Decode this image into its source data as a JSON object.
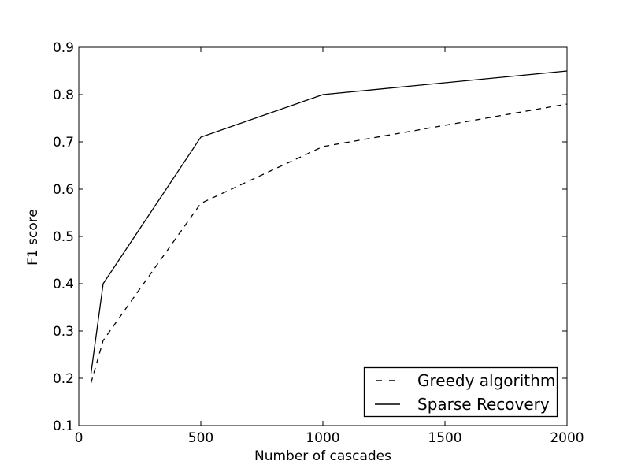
{
  "figure": {
    "background": "#ffffff",
    "frame_color": "#000000"
  },
  "chart_data": {
    "type": "line",
    "title": "",
    "xlabel": "Number of cascades",
    "ylabel": "F1 score",
    "xlim": [
      0,
      2000
    ],
    "ylim": [
      0.1,
      0.9
    ],
    "x_ticks": [
      0,
      500,
      1000,
      1500,
      2000
    ],
    "x_tick_labels": [
      "0",
      "500",
      "1000",
      "1500",
      "2000"
    ],
    "y_ticks": [
      0.1,
      0.2,
      0.3,
      0.4,
      0.5,
      0.6,
      0.7,
      0.8,
      0.9
    ],
    "y_tick_labels": [
      "0.1",
      "0.2",
      "0.3",
      "0.4",
      "0.5",
      "0.6",
      "0.7",
      "0.8",
      "0.9"
    ],
    "grid": false,
    "x": [
      50,
      100,
      500,
      1000,
      2000
    ],
    "series": [
      {
        "name": "Greedy algorithm",
        "line_style": "dashed",
        "color": "#000000",
        "values": [
          0.19,
          0.28,
          0.57,
          0.69,
          0.78
        ]
      },
      {
        "name": "Sparse Recovery",
        "line_style": "solid",
        "color": "#000000",
        "values": [
          0.21,
          0.4,
          0.71,
          0.8,
          0.85
        ]
      }
    ],
    "legend": {
      "position": "lower right",
      "entries": [
        "Greedy algorithm",
        "Sparse Recovery"
      ]
    }
  }
}
